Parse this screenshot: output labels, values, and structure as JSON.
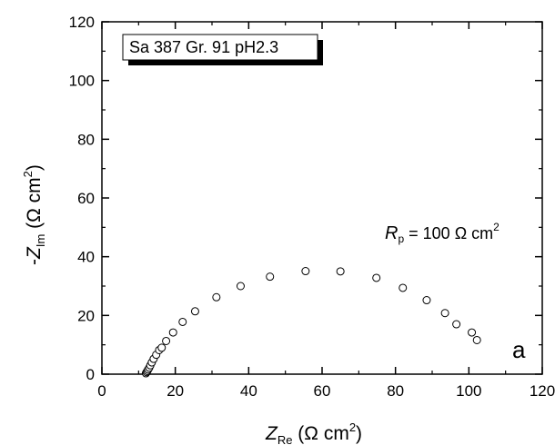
{
  "chart_data": {
    "type": "scatter",
    "legend_box_text": "Sa 387 Gr. 91 pH2.3",
    "annotation_rp": {
      "symbol": "R",
      "subscript": "p",
      "text": " = 100 Ω cm",
      "superscript": "2"
    },
    "panel_letter": "a",
    "xlabel": {
      "symbol": "Z",
      "subscript": "Re",
      "units_prefix": " (Ω cm",
      "units_sup": "2",
      "units_suffix": ")"
    },
    "ylabel": {
      "prefix": "-",
      "symbol": "Z",
      "subscript": "Im",
      "units_prefix": " (Ω cm",
      "units_sup": "2",
      "units_suffix": ")"
    },
    "xlim": [
      0,
      120
    ],
    "ylim": [
      0,
      120
    ],
    "xticks": [
      0,
      20,
      40,
      60,
      80,
      100,
      120
    ],
    "yticks": [
      0,
      20,
      40,
      60,
      80,
      100,
      120
    ],
    "grid": false,
    "marker": "open-circle",
    "points": [
      {
        "x": 12.0,
        "y": 0.3
      },
      {
        "x": 12.2,
        "y": 0.7
      },
      {
        "x": 12.4,
        "y": 1.1
      },
      {
        "x": 12.6,
        "y": 1.6
      },
      {
        "x": 12.9,
        "y": 2.2
      },
      {
        "x": 13.2,
        "y": 3.0
      },
      {
        "x": 13.6,
        "y": 4.0
      },
      {
        "x": 14.1,
        "y": 5.2
      },
      {
        "x": 14.8,
        "y": 6.6
      },
      {
        "x": 15.6,
        "y": 8.2
      },
      {
        "x": 16.3,
        "y": 9.0
      },
      {
        "x": 17.5,
        "y": 11.3
      },
      {
        "x": 19.4,
        "y": 14.2
      },
      {
        "x": 22.0,
        "y": 17.8
      },
      {
        "x": 25.4,
        "y": 21.4
      },
      {
        "x": 31.2,
        "y": 26.2
      },
      {
        "x": 37.8,
        "y": 30.0
      },
      {
        "x": 45.8,
        "y": 33.2
      },
      {
        "x": 55.5,
        "y": 35.1
      },
      {
        "x": 65.0,
        "y": 35.0
      },
      {
        "x": 74.8,
        "y": 32.8
      },
      {
        "x": 82.0,
        "y": 29.4
      },
      {
        "x": 88.5,
        "y": 25.2
      },
      {
        "x": 93.5,
        "y": 20.8
      },
      {
        "x": 96.6,
        "y": 17.0
      },
      {
        "x": 100.8,
        "y": 14.2
      },
      {
        "x": 102.2,
        "y": 11.6
      }
    ]
  }
}
